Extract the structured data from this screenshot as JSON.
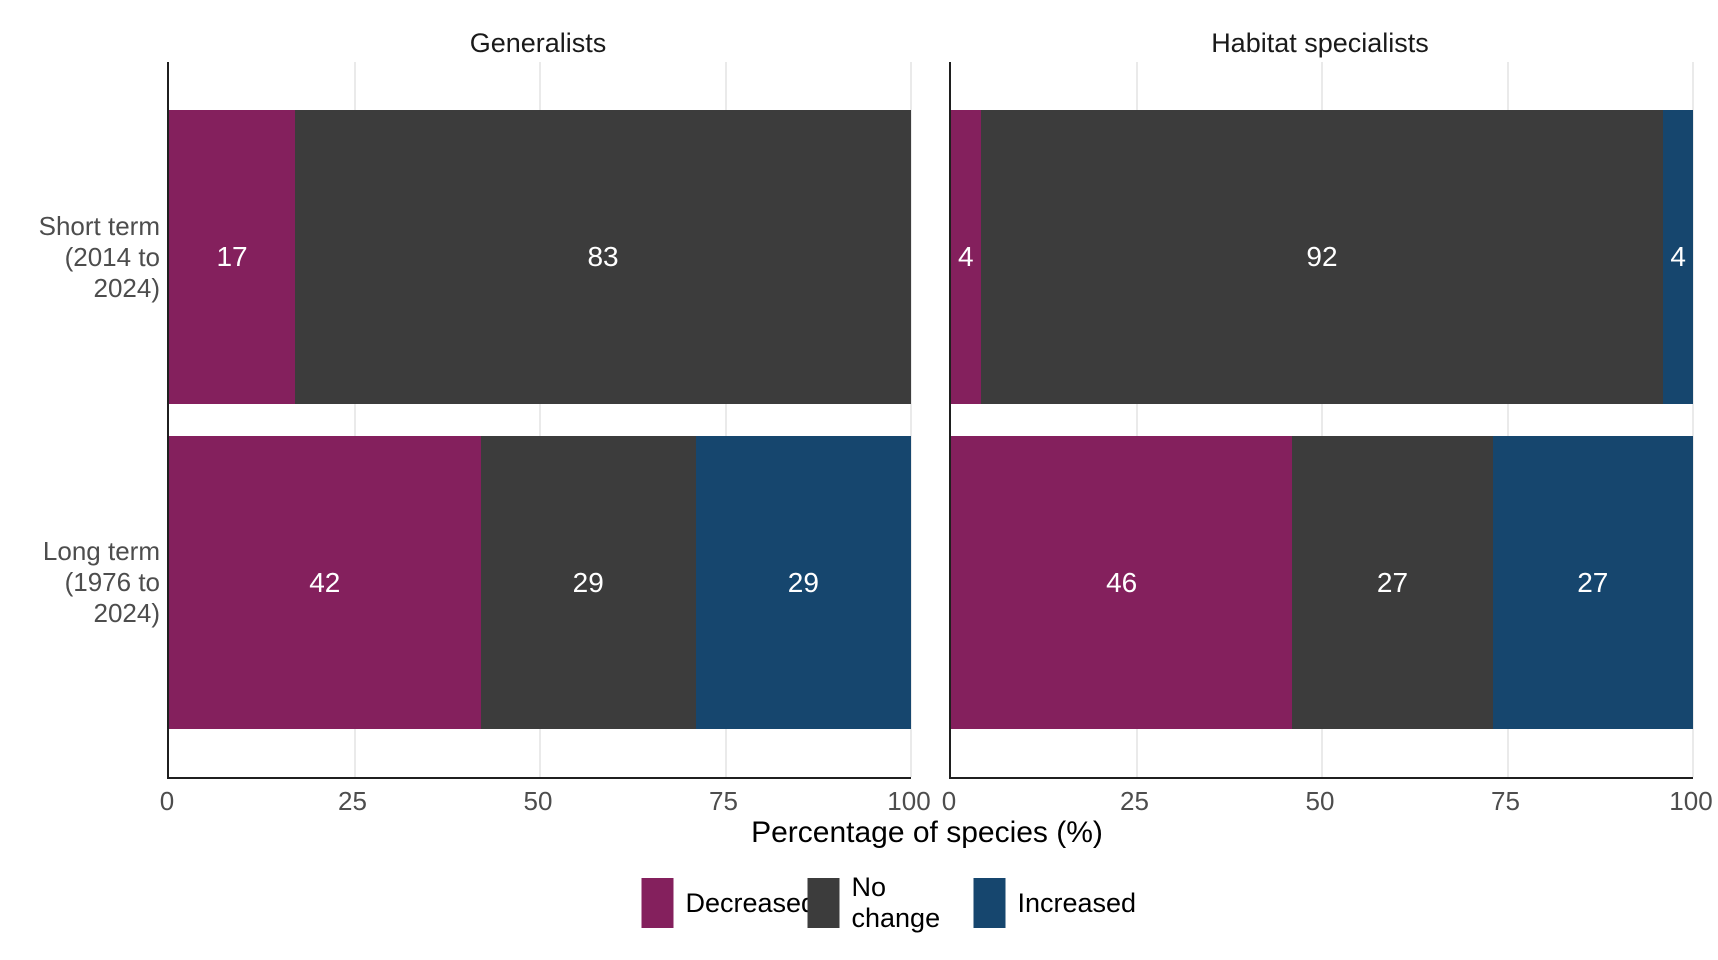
{
  "chart_data": {
    "type": "bar",
    "variant": "horizontal-stacked-percent",
    "title": "",
    "xlabel": "Percentage of species (%)",
    "xlim": [
      0,
      100
    ],
    "x_ticks": [
      0,
      25,
      50,
      75,
      100
    ],
    "grid": "vertical-light-gridlines",
    "legend_position": "bottom-center",
    "categories": [
      [
        "Short term",
        "(2014 to",
        "2024)"
      ],
      [
        "Long term",
        "(1976 to",
        "2024)"
      ]
    ],
    "legend": [
      {
        "label": "Decreased",
        "color": "#84205D"
      },
      {
        "label": "No change",
        "color": "#3C3C3C"
      },
      {
        "label": "Increased",
        "color": "#16466E"
      }
    ],
    "facets": [
      {
        "title": "Generalists",
        "series": [
          {
            "name": "Decreased",
            "values": [
              17,
              42
            ]
          },
          {
            "name": "No change",
            "values": [
              83,
              29
            ]
          },
          {
            "name": "Increased",
            "values": [
              0,
              29
            ]
          }
        ]
      },
      {
        "title": "Habitat specialists",
        "series": [
          {
            "name": "Decreased",
            "values": [
              4,
              46
            ]
          },
          {
            "name": "No change",
            "values": [
              92,
              27
            ]
          },
          {
            "name": "Increased",
            "values": [
              4,
              27
            ]
          }
        ]
      }
    ],
    "bar_value_labels_shown": true,
    "colors": {
      "axis_text": "#4D4D4D",
      "axis_line": "#1F1F1F",
      "gridline": "#EAEAEA",
      "bar_label": "#FFFFFF",
      "facet_title_text": "#1A1A1A"
    }
  }
}
